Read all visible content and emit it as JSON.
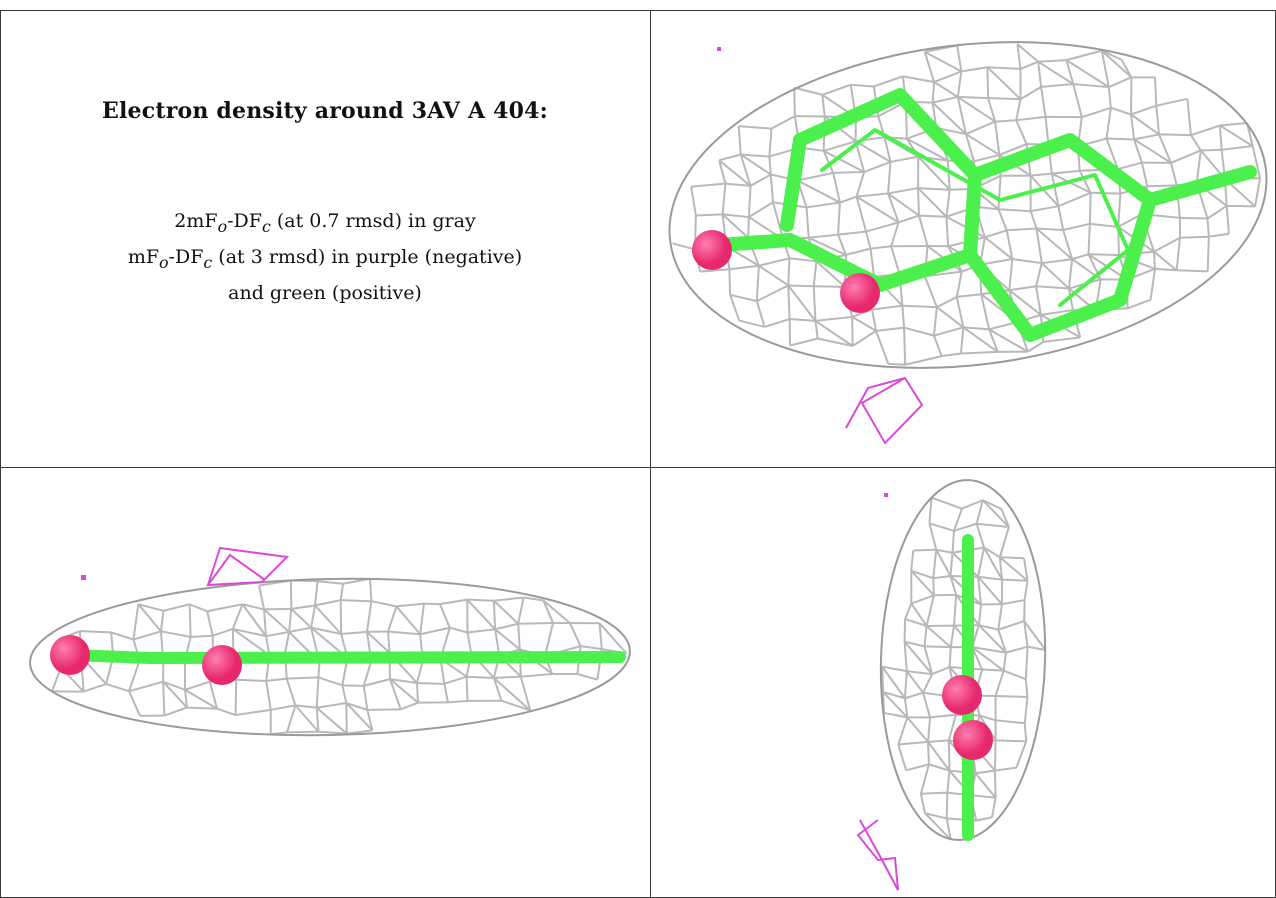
{
  "caption": {
    "title": "Electron density around 3AV A 404:",
    "line1": {
      "prefix": "2mF",
      "sub1": "o",
      "mid": "-DF",
      "sub2": "c",
      "suffix": " (at 0.7 rmsd) in gray"
    },
    "line2": {
      "prefix": "mF",
      "sub1": "o",
      "mid": "-DF",
      "sub2": "c",
      "suffix": " (at 3 rmsd) in purple (negative)"
    },
    "line3": "and green (positive)"
  },
  "views": [
    {
      "name": "top-right-view",
      "orientation": "face-on"
    },
    {
      "name": "bottom-left-view",
      "orientation": "edge-on horizontal"
    },
    {
      "name": "bottom-right-view",
      "orientation": "edge-on vertical"
    }
  ],
  "colors": {
    "mesh_gray": "#b8b8b8",
    "ligand_green": "#4cf04c",
    "oxygen_pink": "#e8286e",
    "negative_purple": "#d84ad8",
    "grid_line": "#3a3a3a"
  }
}
